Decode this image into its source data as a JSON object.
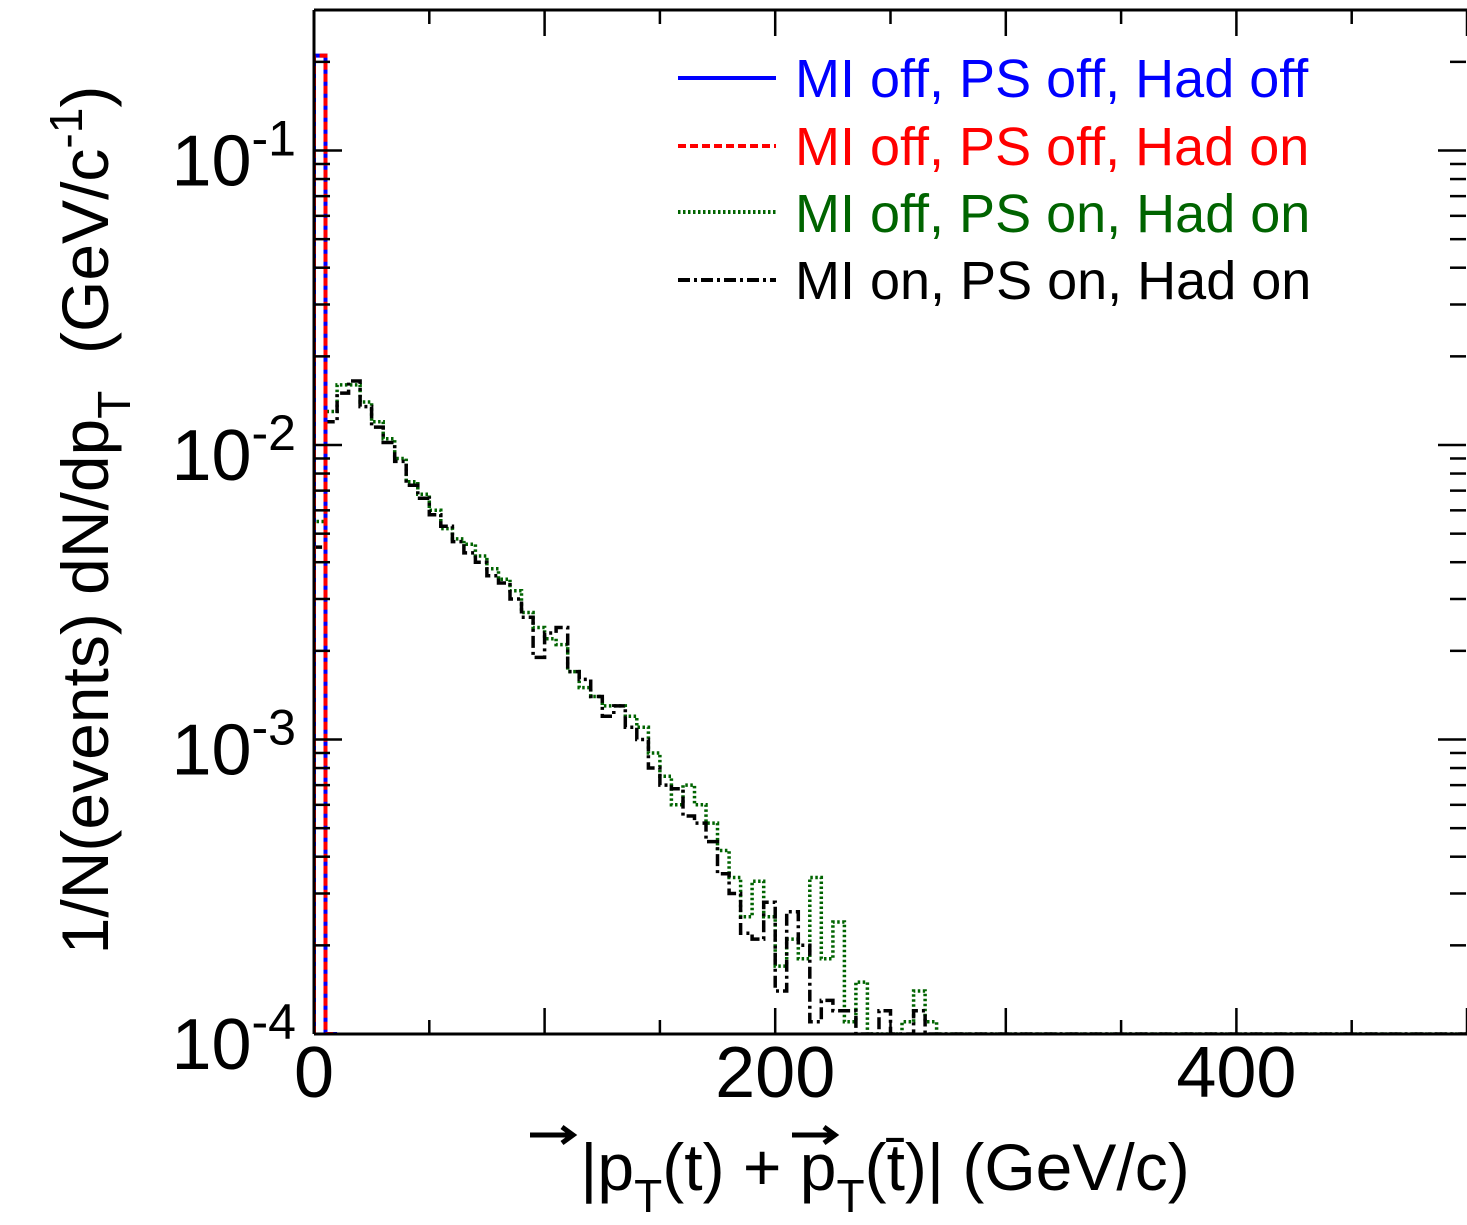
{
  "chart_data": {
    "type": "line",
    "xlabel": "|p_T(t) + p_T(t̄)| (GeV/c)",
    "xlabel_parts": {
      "open": "|",
      "p1": "p",
      "sub1": "T",
      "arg1": "(t) + ",
      "p2": "p",
      "sub2": "T",
      "arg2": "(t̄)| (GeV/c)"
    },
    "ylabel": "1/N(events) dN/dp_T (GeV/c^-1)",
    "ylabel_parts": {
      "main": "1/N(events) dN/dp",
      "sub": "T",
      "unit_open": "  (GeV/c",
      "sup": "-1",
      "unit_close": ")"
    },
    "xlim": [
      0,
      500
    ],
    "ylim": [
      0.0001,
      0.3
    ],
    "yscale": "log",
    "x_ticks": [
      {
        "value": 0,
        "label": "0"
      },
      {
        "value": 200,
        "label": "200"
      },
      {
        "value": 400,
        "label": "400"
      }
    ],
    "y_ticks": [
      {
        "value": 0.1,
        "base": "10",
        "exp": "-1"
      },
      {
        "value": 0.01,
        "base": "10",
        "exp": "-2"
      },
      {
        "value": 0.001,
        "base": "10",
        "exp": "-3"
      },
      {
        "value": 0.0001,
        "base": "10",
        "exp": "-4"
      }
    ],
    "grid": false,
    "legend_position": "top-right",
    "series": [
      {
        "name": "MI off, PS off, Had off",
        "color": "#0000ff",
        "style": "solid",
        "bin_width": 5,
        "x": [
          0,
          5
        ],
        "y": [
          0.21,
          0.0001
        ]
      },
      {
        "name": "MI off, PS off, Had on",
        "color": "#ff0000",
        "style": "dashed",
        "bin_width": 5,
        "x": [
          0,
          5
        ],
        "y": [
          0.21,
          0.0001
        ]
      },
      {
        "name": "MI off, PS on, Had on",
        "color": "#006400",
        "style": "dotted",
        "bin_width": 5,
        "x": [
          0,
          5,
          10,
          15,
          20,
          25,
          30,
          35,
          40,
          45,
          50,
          55,
          60,
          65,
          70,
          75,
          80,
          85,
          90,
          95,
          100,
          105,
          110,
          115,
          120,
          125,
          130,
          135,
          140,
          145,
          150,
          155,
          160,
          165,
          170,
          175,
          180,
          185,
          190,
          195,
          200,
          205,
          210,
          215,
          220,
          225,
          230,
          235,
          240,
          245,
          250,
          255,
          260,
          265,
          270,
          275,
          280,
          285,
          290,
          295,
          300,
          500
        ],
        "y": [
          0.0055,
          0.013,
          0.016,
          0.016,
          0.014,
          0.012,
          0.0105,
          0.009,
          0.0075,
          0.0068,
          0.006,
          0.0052,
          0.0048,
          0.0046,
          0.0042,
          0.0038,
          0.0035,
          0.0032,
          0.0027,
          0.0024,
          0.0022,
          0.0021,
          0.0017,
          0.0015,
          0.0014,
          0.0013,
          0.0013,
          0.0012,
          0.0011,
          0.0009,
          0.00075,
          0.0006,
          0.0007,
          0.0006,
          0.00052,
          0.00042,
          0.00034,
          0.00025,
          0.00033,
          0.00025,
          0.00017,
          0.00021,
          0.00018,
          0.00034,
          0.00018,
          0.00024,
          0.00011,
          0.00015,
          0.0001,
          0.0001,
          0.0001,
          0.00011,
          0.00014,
          0.00011,
          0.0001,
          0.0001,
          0.0001,
          0.0001,
          0.0001,
          0.0001,
          0.0001,
          0.0001
        ]
      },
      {
        "name": "MI on, PS on, Had on",
        "color": "#000000",
        "style": "dashdot",
        "bin_width": 5,
        "x": [
          0,
          5,
          10,
          15,
          20,
          25,
          30,
          35,
          40,
          45,
          50,
          55,
          60,
          65,
          70,
          75,
          80,
          85,
          90,
          95,
          100,
          105,
          110,
          115,
          120,
          125,
          130,
          135,
          140,
          145,
          150,
          155,
          160,
          165,
          170,
          175,
          180,
          185,
          190,
          195,
          200,
          205,
          210,
          215,
          220,
          225,
          230,
          235,
          240,
          245,
          250,
          255,
          260,
          265,
          270,
          275,
          280,
          285,
          290,
          295,
          300,
          500
        ],
        "y": [
          0.0045,
          0.012,
          0.015,
          0.0165,
          0.0135,
          0.0115,
          0.0102,
          0.0088,
          0.0073,
          0.0066,
          0.0058,
          0.0053,
          0.0047,
          0.0043,
          0.004,
          0.0036,
          0.0034,
          0.003,
          0.0026,
          0.0019,
          0.0023,
          0.0024,
          0.0017,
          0.0016,
          0.0014,
          0.0012,
          0.0013,
          0.0011,
          0.001,
          0.0008,
          0.0007,
          0.00068,
          0.00055,
          0.00052,
          0.00045,
          0.00035,
          0.0003,
          0.00022,
          0.00021,
          0.00028,
          0.00014,
          0.00026,
          0.0002,
          0.00011,
          0.00013,
          0.00012,
          0.00012,
          0.0001,
          0.0001,
          0.00012,
          0.0001,
          0.0001,
          0.00012,
          0.0001,
          0.0001,
          0.0001,
          0.0001,
          0.0001,
          0.0001,
          0.0001,
          0.0001,
          0.0001
        ]
      }
    ]
  }
}
